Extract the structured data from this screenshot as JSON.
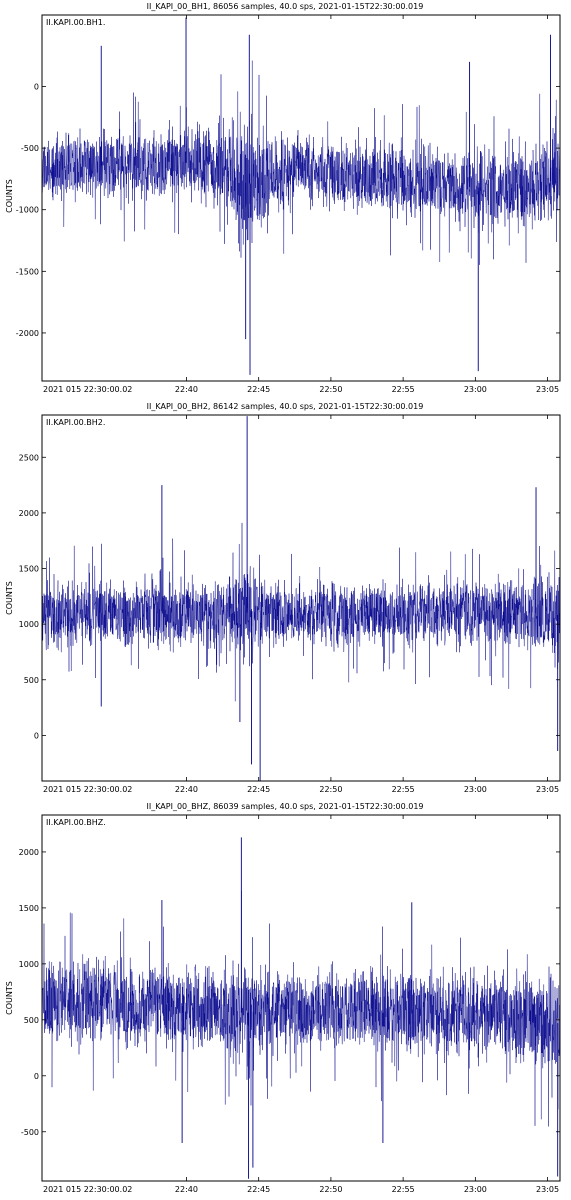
{
  "chart_data": [
    {
      "type": "line",
      "title": "II_KAPI_00_BH1, 86056 samples, 40.0 sps, 2021-01-15T22:30:00.019",
      "channel_label": "II.KAPI.00.BH1.",
      "ylabel": "COUNTS",
      "xlim": [
        "2021-01-15T22:30:00.019",
        "2021-01-15T23:05:51.4"
      ],
      "ylim": [
        -2390,
        580
      ],
      "yticks": [
        -2000,
        -1500,
        -1000,
        -500,
        0
      ],
      "ytick_labels": [
        "-2000",
        "-1500",
        "-1000",
        "-500",
        "0"
      ],
      "xtick_labels": [
        "2021 015 22:30:00.02",
        "22:40",
        "22:45",
        "22:50",
        "22:55",
        "23:00",
        "23:05"
      ],
      "xtick_minutes": [
        0,
        10,
        15,
        20,
        25,
        30,
        35
      ],
      "duration_min": 35.86,
      "envelope": {
        "t_min": [
          0,
          3,
          6,
          8,
          10,
          12,
          13,
          14,
          15,
          16,
          18,
          20,
          24,
          28,
          30,
          32,
          34,
          35.86
        ],
        "center": [
          -650,
          -650,
          -640,
          -630,
          -620,
          -650,
          -700,
          -780,
          -800,
          -720,
          -650,
          -700,
          -760,
          -800,
          -820,
          -820,
          -780,
          -760
        ],
        "amplitude": [
          300,
          300,
          330,
          320,
          310,
          380,
          450,
          650,
          500,
          380,
          300,
          310,
          330,
          340,
          360,
          350,
          380,
          420
        ]
      },
      "spikes": [
        {
          "t_min": 9.97,
          "value": 560
        },
        {
          "t_min": 14.35,
          "value": 420
        },
        {
          "t_min": 14.4,
          "value": -2340
        },
        {
          "t_min": 14.1,
          "value": -2050
        },
        {
          "t_min": 4.1,
          "value": 330
        },
        {
          "t_min": 30.2,
          "value": -2310
        },
        {
          "t_min": 29.6,
          "value": 200
        },
        {
          "t_min": 35.2,
          "value": 420
        }
      ],
      "color": "#00008b",
      "seed": 11
    },
    {
      "type": "line",
      "title": "II_KAPI_00_BH2, 86142 samples, 40.0 sps, 2021-01-15T22:30:00.019",
      "channel_label": "II.KAPI.00.BH2.",
      "ylabel": "COUNTS",
      "xlim": [
        "2021-01-15T22:30:00.019",
        "2021-01-15T23:05:51.4"
      ],
      "ylim": [
        -410,
        2880
      ],
      "yticks": [
        0,
        500,
        1000,
        1500,
        2000,
        2500
      ],
      "ytick_labels": [
        "0",
        "500",
        "1000",
        "1500",
        "2000",
        "2500"
      ],
      "xtick_labels": [
        "2021 015 22:30:00.02",
        "22:40",
        "22:45",
        "22:50",
        "22:55",
        "23:00",
        "23:05"
      ],
      "xtick_minutes": [
        0,
        10,
        15,
        20,
        25,
        30,
        35
      ],
      "duration_min": 35.86,
      "envelope": {
        "t_min": [
          0,
          3,
          6,
          8,
          10,
          12,
          13,
          14,
          15,
          16,
          18,
          20,
          24,
          28,
          30,
          32,
          34,
          35.86
        ],
        "center": [
          1100,
          1100,
          1100,
          1120,
          1100,
          1100,
          1100,
          1150,
          1120,
          1100,
          1090,
          1090,
          1100,
          1110,
          1110,
          1100,
          1100,
          1080
        ],
        "amplitude": [
          330,
          340,
          330,
          400,
          340,
          330,
          380,
          520,
          420,
          340,
          310,
          330,
          340,
          350,
          340,
          350,
          420,
          480
        ]
      },
      "spikes": [
        {
          "t_min": 14.2,
          "value": 2870
        },
        {
          "t_min": 15.1,
          "value": -410
        },
        {
          "t_min": 14.5,
          "value": -260
        },
        {
          "t_min": 8.3,
          "value": 2250
        },
        {
          "t_min": 13.7,
          "value": 120
        },
        {
          "t_min": 35.7,
          "value": -140
        },
        {
          "t_min": 34.2,
          "value": 2230
        },
        {
          "t_min": 4.1,
          "value": 260
        }
      ],
      "color": "#00008b",
      "seed": 23
    },
    {
      "type": "line",
      "title": "II_KAPI_00_BHZ, 86039 samples, 40.0 sps, 2021-01-15T22:30:00.019",
      "channel_label": "II.KAPI.00.BHZ.",
      "ylabel": "COUNTS",
      "xlim": [
        "2021-01-15T22:30:00.019",
        "2021-01-15T23:05:51.4"
      ],
      "ylim": [
        -940,
        2330
      ],
      "yticks": [
        -500,
        0,
        500,
        1000,
        1500,
        2000
      ],
      "ytick_labels": [
        "-500",
        "0",
        "500",
        "1000",
        "1500",
        "2000"
      ],
      "xtick_labels": [
        "2021 015 22:30:00.02",
        "22:40",
        "22:45",
        "22:50",
        "22:55",
        "23:00",
        "23:05"
      ],
      "xtick_minutes": [
        0,
        10,
        15,
        20,
        25,
        30,
        35
      ],
      "duration_min": 35.86,
      "envelope": {
        "t_min": [
          0,
          3,
          6,
          8,
          10,
          12,
          13,
          14,
          15,
          16,
          18,
          20,
          24,
          28,
          30,
          32,
          34,
          35.86
        ],
        "center": [
          650,
          660,
          650,
          640,
          620,
          600,
          580,
          560,
          580,
          600,
          600,
          590,
          560,
          550,
          540,
          530,
          480,
          470
        ],
        "amplitude": [
          420,
          430,
          420,
          440,
          420,
          410,
          480,
          620,
          480,
          420,
          400,
          410,
          420,
          430,
          430,
          440,
          500,
          560
        ]
      },
      "spikes": [
        {
          "t_min": 13.8,
          "value": 2130
        },
        {
          "t_min": 14.3,
          "value": -920
        },
        {
          "t_min": 14.6,
          "value": -820
        },
        {
          "t_min": 35.7,
          "value": -900
        },
        {
          "t_min": 9.7,
          "value": -600
        },
        {
          "t_min": 23.6,
          "value": -600
        },
        {
          "t_min": 8.3,
          "value": 1570
        },
        {
          "t_min": 25.6,
          "value": 1550
        }
      ],
      "color": "#00008b",
      "seed": 37
    }
  ]
}
